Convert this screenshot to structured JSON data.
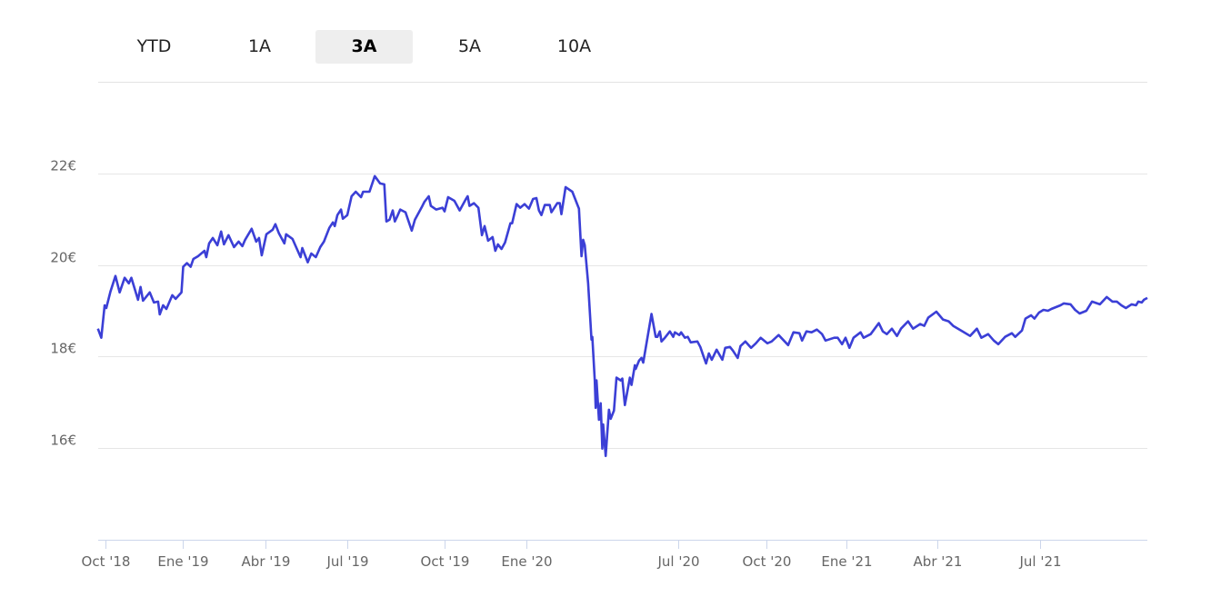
{
  "range_selector": {
    "buttons": [
      {
        "label": "YTD",
        "selected": false
      },
      {
        "label": "1A",
        "selected": false
      },
      {
        "label": "3A",
        "selected": true
      },
      {
        "label": "5A",
        "selected": false
      },
      {
        "label": "10A",
        "selected": false
      }
    ]
  },
  "chart_data": {
    "type": "line",
    "line_color": "#3b3fd6",
    "grid": true,
    "ylim": [
      14,
      24
    ],
    "y_ticks": [
      {
        "value": 16,
        "label": "16€"
      },
      {
        "value": 18,
        "label": "18€"
      },
      {
        "value": 20,
        "label": "20€"
      },
      {
        "value": 22,
        "label": "22€"
      }
    ],
    "x_ticks": [
      {
        "date": "2018-10-01",
        "label": "Oct '18"
      },
      {
        "date": "2019-01-01",
        "label": "Ene '19"
      },
      {
        "date": "2019-04-01",
        "label": "Abr '19"
      },
      {
        "date": "2019-07-01",
        "label": "Jul '19"
      },
      {
        "date": "2019-10-01",
        "label": "Oct '19"
      },
      {
        "date": "2020-01-01",
        "label": "Ene '20"
      },
      {
        "date": "2020-07-01",
        "label": "Jul '20"
      },
      {
        "date": "2020-10-01",
        "label": "Oct '20"
      },
      {
        "date": "2021-01-01",
        "label": "Ene '21"
      },
      {
        "date": "2021-04-01",
        "label": "Abr '21"
      },
      {
        "date": "2021-07-01",
        "label": "Jul '21"
      }
    ],
    "series": [
      {
        "points": [
          [
            "2018-09-22",
            18.61
          ],
          [
            "2018-09-26",
            18.41
          ],
          [
            "2018-09-30",
            19.12
          ],
          [
            "2018-10-02",
            19.06
          ],
          [
            "2018-10-07",
            19.42
          ],
          [
            "2018-10-13",
            19.76
          ],
          [
            "2018-10-18",
            19.4
          ],
          [
            "2018-10-24",
            19.72
          ],
          [
            "2018-10-29",
            19.6
          ],
          [
            "2018-11-01",
            19.72
          ],
          [
            "2018-11-09",
            19.24
          ],
          [
            "2018-11-12",
            19.52
          ],
          [
            "2018-11-15",
            19.22
          ],
          [
            "2018-11-23",
            19.4
          ],
          [
            "2018-11-28",
            19.18
          ],
          [
            "2018-12-03",
            19.2
          ],
          [
            "2018-12-05",
            18.92
          ],
          [
            "2018-12-09",
            19.12
          ],
          [
            "2018-12-13",
            19.04
          ],
          [
            "2018-12-20",
            19.34
          ],
          [
            "2018-12-24",
            19.26
          ],
          [
            "2018-12-31",
            19.4
          ],
          [
            "2019-01-02",
            19.96
          ],
          [
            "2019-01-06",
            20.04
          ],
          [
            "2019-01-10",
            19.96
          ],
          [
            "2019-01-13",
            20.13
          ],
          [
            "2019-01-18",
            20.19
          ],
          [
            "2019-01-25",
            20.31
          ],
          [
            "2019-01-27",
            20.17
          ],
          [
            "2019-01-30",
            20.47
          ],
          [
            "2019-02-03",
            20.59
          ],
          [
            "2019-02-08",
            20.43
          ],
          [
            "2019-02-12",
            20.73
          ],
          [
            "2019-02-15",
            20.45
          ],
          [
            "2019-02-20",
            20.65
          ],
          [
            "2019-02-26",
            20.39
          ],
          [
            "2019-03-03",
            20.51
          ],
          [
            "2019-03-07",
            20.41
          ],
          [
            "2019-03-10",
            20.55
          ],
          [
            "2019-03-17",
            20.79
          ],
          [
            "2019-03-22",
            20.51
          ],
          [
            "2019-03-25",
            20.59
          ],
          [
            "2019-03-28",
            20.21
          ],
          [
            "2019-04-02",
            20.67
          ],
          [
            "2019-04-09",
            20.77
          ],
          [
            "2019-04-12",
            20.89
          ],
          [
            "2019-04-16",
            20.69
          ],
          [
            "2019-04-22",
            20.47
          ],
          [
            "2019-04-24",
            20.67
          ],
          [
            "2019-05-01",
            20.57
          ],
          [
            "2019-05-06",
            20.35
          ],
          [
            "2019-05-10",
            20.17
          ],
          [
            "2019-05-12",
            20.37
          ],
          [
            "2019-05-18",
            20.06
          ],
          [
            "2019-05-22",
            20.25
          ],
          [
            "2019-05-27",
            20.17
          ],
          [
            "2019-06-01",
            20.39
          ],
          [
            "2019-06-05",
            20.51
          ],
          [
            "2019-06-11",
            20.81
          ],
          [
            "2019-06-15",
            20.93
          ],
          [
            "2019-06-17",
            20.85
          ],
          [
            "2019-06-20",
            21.09
          ],
          [
            "2019-06-24",
            21.21
          ],
          [
            "2019-06-26",
            21.01
          ],
          [
            "2019-07-01",
            21.09
          ],
          [
            "2019-07-05",
            21.5
          ],
          [
            "2019-07-09",
            21.6
          ],
          [
            "2019-07-14",
            21.48
          ],
          [
            "2019-07-16",
            21.6
          ],
          [
            "2019-07-22",
            21.6
          ],
          [
            "2019-07-27",
            21.94
          ],
          [
            "2019-08-01",
            21.78
          ],
          [
            "2019-08-05",
            21.76
          ],
          [
            "2019-08-07",
            20.95
          ],
          [
            "2019-08-10",
            20.99
          ],
          [
            "2019-08-13",
            21.19
          ],
          [
            "2019-08-15",
            20.95
          ],
          [
            "2019-08-17",
            21.05
          ],
          [
            "2019-08-20",
            21.21
          ],
          [
            "2019-08-25",
            21.15
          ],
          [
            "2019-08-31",
            20.75
          ],
          [
            "2019-09-03",
            20.99
          ],
          [
            "2019-09-10",
            21.29
          ],
          [
            "2019-09-12",
            21.38
          ],
          [
            "2019-09-16",
            21.5
          ],
          [
            "2019-09-18",
            21.29
          ],
          [
            "2019-09-23",
            21.21
          ],
          [
            "2019-09-29",
            21.25
          ],
          [
            "2019-10-01",
            21.17
          ],
          [
            "2019-10-05",
            21.48
          ],
          [
            "2019-10-12",
            21.4
          ],
          [
            "2019-10-18",
            21.19
          ],
          [
            "2019-10-25",
            21.44
          ],
          [
            "2019-10-27",
            21.5
          ],
          [
            "2019-10-29",
            21.29
          ],
          [
            "2019-11-03",
            21.35
          ],
          [
            "2019-11-08",
            21.25
          ],
          [
            "2019-11-12",
            20.65
          ],
          [
            "2019-11-15",
            20.85
          ],
          [
            "2019-11-19",
            20.53
          ],
          [
            "2019-11-24",
            20.61
          ],
          [
            "2019-11-27",
            20.31
          ],
          [
            "2019-11-30",
            20.45
          ],
          [
            "2019-12-04",
            20.35
          ],
          [
            "2019-12-08",
            20.49
          ],
          [
            "2019-12-14",
            20.91
          ],
          [
            "2019-12-16",
            20.91
          ],
          [
            "2019-12-21",
            21.33
          ],
          [
            "2019-12-25",
            21.25
          ],
          [
            "2019-12-30",
            21.33
          ],
          [
            "2020-01-04",
            21.23
          ],
          [
            "2020-01-09",
            21.44
          ],
          [
            "2020-01-13",
            21.46
          ],
          [
            "2020-01-16",
            21.19
          ],
          [
            "2020-01-19",
            21.09
          ],
          [
            "2020-01-23",
            21.31
          ],
          [
            "2020-01-29",
            21.31
          ],
          [
            "2020-01-31",
            21.15
          ],
          [
            "2020-02-07",
            21.35
          ],
          [
            "2020-02-10",
            21.35
          ],
          [
            "2020-02-12",
            21.11
          ],
          [
            "2020-02-17",
            21.7
          ],
          [
            "2020-02-25",
            21.6
          ],
          [
            "2020-03-04",
            21.23
          ],
          [
            "2020-03-07",
            20.19
          ],
          [
            "2020-03-09",
            20.55
          ],
          [
            "2020-03-11",
            20.43
          ],
          [
            "2020-03-15",
            19.6
          ],
          [
            "2020-03-19",
            18.37
          ],
          [
            "2020-03-20",
            18.43
          ],
          [
            "2020-03-23",
            17.48
          ],
          [
            "2020-03-24",
            16.88
          ],
          [
            "2020-03-25",
            17.48
          ],
          [
            "2020-03-28",
            16.62
          ],
          [
            "2020-03-30",
            16.98
          ],
          [
            "2020-04-01",
            15.99
          ],
          [
            "2020-04-02",
            16.52
          ],
          [
            "2020-04-05",
            15.83
          ],
          [
            "2020-04-09",
            16.84
          ],
          [
            "2020-04-11",
            16.64
          ],
          [
            "2020-04-15",
            16.82
          ],
          [
            "2020-04-18",
            17.54
          ],
          [
            "2020-04-23",
            17.48
          ],
          [
            "2020-04-25",
            17.52
          ],
          [
            "2020-04-28",
            16.94
          ],
          [
            "2020-05-04",
            17.54
          ],
          [
            "2020-05-06",
            17.38
          ],
          [
            "2020-05-10",
            17.81
          ],
          [
            "2020-05-11",
            17.73
          ],
          [
            "2020-05-15",
            17.91
          ],
          [
            "2020-05-18",
            17.97
          ],
          [
            "2020-05-20",
            17.87
          ],
          [
            "2020-05-30",
            18.93
          ],
          [
            "2020-06-04",
            18.43
          ],
          [
            "2020-06-06",
            18.43
          ],
          [
            "2020-06-09",
            18.55
          ],
          [
            "2020-06-11",
            18.33
          ],
          [
            "2020-06-15",
            18.41
          ],
          [
            "2020-06-21",
            18.55
          ],
          [
            "2020-06-25",
            18.43
          ],
          [
            "2020-06-27",
            18.53
          ],
          [
            "2020-07-02",
            18.47
          ],
          [
            "2020-07-04",
            18.53
          ],
          [
            "2020-07-08",
            18.41
          ],
          [
            "2020-07-11",
            18.43
          ],
          [
            "2020-07-14",
            18.31
          ],
          [
            "2020-07-21",
            18.33
          ],
          [
            "2020-07-24",
            18.21
          ],
          [
            "2020-07-27",
            18.03
          ],
          [
            "2020-07-30",
            17.85
          ],
          [
            "2020-08-02",
            18.07
          ],
          [
            "2020-08-05",
            17.93
          ],
          [
            "2020-08-10",
            18.15
          ],
          [
            "2020-08-16",
            17.93
          ],
          [
            "2020-08-19",
            18.19
          ],
          [
            "2020-08-24",
            18.21
          ],
          [
            "2020-08-27",
            18.13
          ],
          [
            "2020-09-01",
            17.97
          ],
          [
            "2020-09-04",
            18.23
          ],
          [
            "2020-09-09",
            18.33
          ],
          [
            "2020-09-15",
            18.19
          ],
          [
            "2020-09-20",
            18.29
          ],
          [
            "2020-09-25",
            18.41
          ],
          [
            "2020-10-02",
            18.29
          ],
          [
            "2020-10-07",
            18.33
          ],
          [
            "2020-10-15",
            18.47
          ],
          [
            "2020-10-26",
            18.25
          ],
          [
            "2020-11-01",
            18.53
          ],
          [
            "2020-11-08",
            18.51
          ],
          [
            "2020-11-11",
            18.35
          ],
          [
            "2020-11-16",
            18.55
          ],
          [
            "2020-11-22",
            18.53
          ],
          [
            "2020-11-28",
            18.59
          ],
          [
            "2020-12-04",
            18.49
          ],
          [
            "2020-12-08",
            18.35
          ],
          [
            "2020-12-18",
            18.41
          ],
          [
            "2020-12-22",
            18.41
          ],
          [
            "2020-12-27",
            18.27
          ],
          [
            "2020-12-31",
            18.41
          ],
          [
            "2021-01-04",
            18.19
          ],
          [
            "2021-01-08",
            18.41
          ],
          [
            "2021-01-15",
            18.53
          ],
          [
            "2021-01-18",
            18.41
          ],
          [
            "2021-01-25",
            18.49
          ],
          [
            "2021-02-02",
            18.73
          ],
          [
            "2021-02-06",
            18.55
          ],
          [
            "2021-02-10",
            18.49
          ],
          [
            "2021-02-15",
            18.61
          ],
          [
            "2021-02-20",
            18.45
          ],
          [
            "2021-02-24",
            18.61
          ],
          [
            "2021-03-03",
            18.77
          ],
          [
            "2021-03-08",
            18.61
          ],
          [
            "2021-03-15",
            18.71
          ],
          [
            "2021-03-19",
            18.67
          ],
          [
            "2021-03-23",
            18.85
          ],
          [
            "2021-03-31",
            18.98
          ],
          [
            "2021-04-06",
            18.81
          ],
          [
            "2021-04-11",
            18.77
          ],
          [
            "2021-04-15",
            18.67
          ],
          [
            "2021-04-22",
            18.57
          ],
          [
            "2021-04-30",
            18.45
          ],
          [
            "2021-05-06",
            18.61
          ],
          [
            "2021-05-10",
            18.41
          ],
          [
            "2021-05-16",
            18.49
          ],
          [
            "2021-05-21",
            18.35
          ],
          [
            "2021-05-25",
            18.27
          ],
          [
            "2021-05-31",
            18.43
          ],
          [
            "2021-06-06",
            18.51
          ],
          [
            "2021-06-09",
            18.43
          ],
          [
            "2021-06-15",
            18.57
          ],
          [
            "2021-06-18",
            18.83
          ],
          [
            "2021-06-23",
            18.9
          ],
          [
            "2021-06-26",
            18.83
          ],
          [
            "2021-06-30",
            18.96
          ],
          [
            "2021-07-04",
            19.02
          ],
          [
            "2021-07-08",
            19.0
          ],
          [
            "2021-07-11",
            19.04
          ],
          [
            "2021-07-19",
            19.12
          ],
          [
            "2021-07-22",
            19.16
          ],
          [
            "2021-07-28",
            19.14
          ],
          [
            "2021-08-01",
            19.02
          ],
          [
            "2021-08-05",
            18.94
          ],
          [
            "2021-08-11",
            19.0
          ],
          [
            "2021-08-16",
            19.2
          ],
          [
            "2021-08-23",
            19.14
          ],
          [
            "2021-08-29",
            19.3
          ],
          [
            "2021-09-03",
            19.2
          ],
          [
            "2021-09-07",
            19.2
          ],
          [
            "2021-09-11",
            19.12
          ],
          [
            "2021-09-15",
            19.06
          ],
          [
            "2021-09-20",
            19.14
          ],
          [
            "2021-09-24",
            19.12
          ],
          [
            "2021-09-26",
            19.2
          ],
          [
            "2021-09-29",
            19.18
          ],
          [
            "2021-10-01",
            19.24
          ],
          [
            "2021-10-04",
            19.28
          ]
        ]
      }
    ]
  }
}
